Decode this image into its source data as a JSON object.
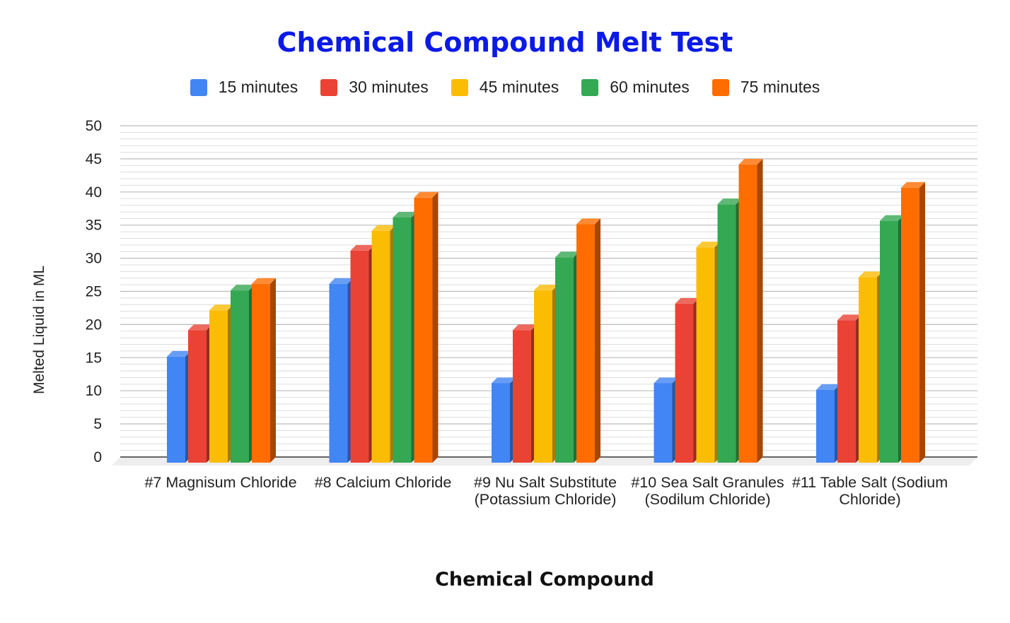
{
  "chart_data": {
    "type": "bar",
    "title": "Chemical Compound Melt Test",
    "xlabel": "Chemical Compound",
    "ylabel": "Melted Liquid in ML",
    "ylim": [
      0,
      50
    ],
    "yticks": [
      0,
      5,
      10,
      15,
      20,
      25,
      30,
      35,
      40,
      45,
      50
    ],
    "grid": true,
    "legend_position": "top",
    "categories": [
      "#7 Magnisum Chloride",
      "#8 Calcium Chloride",
      "#9 Nu Salt Substitute (Potassium Chloride)",
      "#10 Sea Salt Granules (Sodilum Chloride)",
      "#11 Table Salt (Sodium Chloride)"
    ],
    "series": [
      {
        "name": "15 minutes",
        "color": "#4285f4",
        "values": [
          16,
          27,
          12,
          12,
          11
        ]
      },
      {
        "name": "30 minutes",
        "color": "#ea4335",
        "values": [
          20,
          32,
          20,
          24,
          21.5
        ]
      },
      {
        "name": "45 minutes",
        "color": "#fbbc04",
        "values": [
          23,
          35,
          26,
          32.5,
          28
        ]
      },
      {
        "name": "60 minutes",
        "color": "#34a853",
        "values": [
          26,
          37,
          31,
          39,
          36.5
        ]
      },
      {
        "name": "75 minutes",
        "color": "#ff6d01",
        "values": [
          27,
          40,
          36,
          45,
          41.5
        ]
      }
    ]
  }
}
